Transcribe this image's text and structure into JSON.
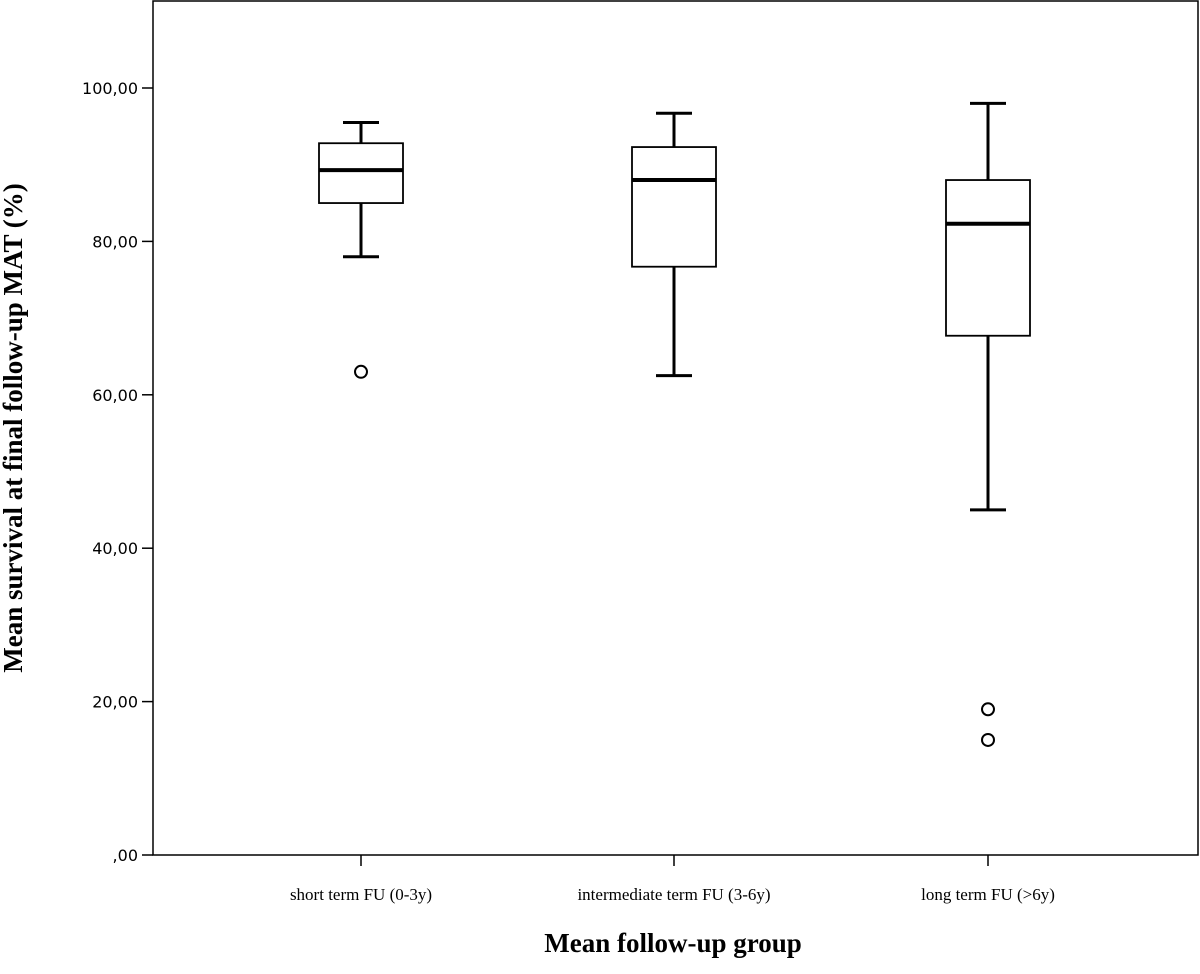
{
  "chart_data": {
    "type": "boxplot",
    "xlabel": "Mean follow-up group",
    "ylabel": "Mean survival at final follow-up MAT (%)",
    "ylim": [
      0,
      110
    ],
    "yticks": [
      0,
      20,
      40,
      60,
      80,
      100
    ],
    "ytick_labels": [
      ",00",
      "20,00",
      "40,00",
      "60,00",
      "80,00",
      "100,00"
    ],
    "grid": false,
    "legend": "none",
    "categories": [
      "short term FU (0-3y)",
      "intermediate term FU (3-6y)",
      "long term FU (>6y)"
    ],
    "boxes": [
      {
        "whisker_low": 78.0,
        "q1": 85.0,
        "median": 89.3,
        "q3": 92.8,
        "whisker_high": 95.5,
        "outliers": [
          63.0
        ]
      },
      {
        "whisker_low": 62.5,
        "q1": 76.7,
        "median": 88.0,
        "q3": 92.3,
        "whisker_high": 96.7,
        "outliers": []
      },
      {
        "whisker_low": 45.0,
        "q1": 67.7,
        "median": 82.3,
        "q3": 88.0,
        "whisker_high": 98.0,
        "outliers": [
          19.0,
          15.0
        ]
      }
    ]
  }
}
